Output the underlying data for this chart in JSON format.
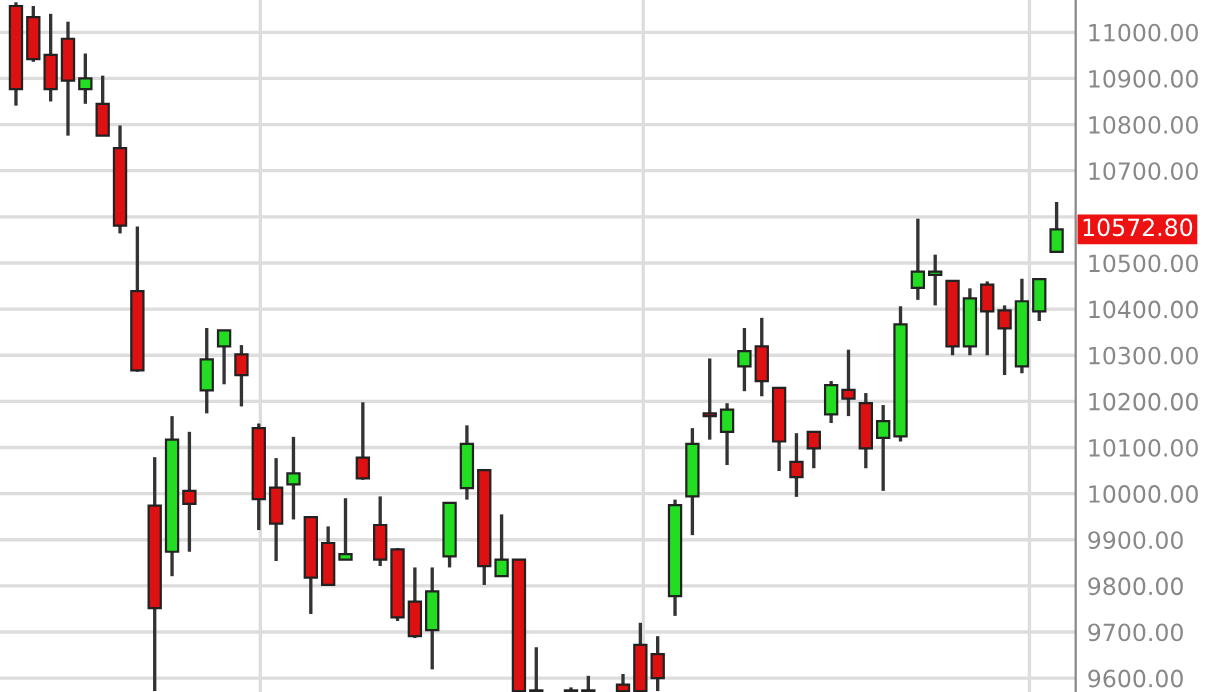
{
  "chart_data": {
    "type": "candlestick",
    "categories": [
      null,
      null,
      null,
      null,
      null,
      null,
      null,
      null,
      null,
      null,
      null,
      null,
      null,
      null,
      null,
      null,
      null,
      null,
      null,
      null,
      null,
      null,
      null,
      null,
      null,
      null,
      null,
      null,
      null,
      null,
      null,
      null,
      null,
      null,
      null,
      null,
      null,
      null,
      null,
      null,
      null,
      null,
      null,
      null,
      null,
      null,
      null,
      null,
      null,
      null,
      null,
      null,
      null,
      null,
      null,
      null,
      null,
      null,
      null,
      null,
      null
    ],
    "ohlc": [
      [
        11057,
        11065,
        10841,
        10877
      ],
      [
        11033,
        11057,
        10936,
        10942
      ],
      [
        10951,
        11040,
        10850,
        10877
      ],
      [
        10986,
        11023,
        10776,
        10895
      ],
      [
        10877,
        10954,
        10845,
        10900
      ],
      [
        10845,
        10906,
        10776,
        10776
      ],
      [
        10749,
        10798,
        10564,
        10581
      ],
      [
        10439,
        10579,
        10264,
        10267
      ],
      [
        9974,
        10079,
        9572,
        9752
      ],
      [
        9874,
        10168,
        9821,
        10117
      ],
      [
        10006,
        10134,
        9874,
        9978
      ],
      [
        10224,
        10359,
        10174,
        10291
      ],
      [
        10319,
        10354,
        10237,
        10354
      ],
      [
        10302,
        10322,
        10189,
        10257
      ],
      [
        10142,
        10152,
        9921,
        9988
      ],
      [
        10013,
        10077,
        9854,
        9935
      ],
      [
        10020,
        10123,
        9944,
        10044
      ],
      [
        9949,
        9949,
        9739,
        9818
      ],
      [
        9893,
        9929,
        9802,
        9802
      ],
      [
        9857,
        9990,
        9857,
        9869
      ],
      [
        10078,
        10198,
        10030,
        10033
      ],
      [
        9932,
        9994,
        9843,
        9857
      ],
      [
        9879,
        9882,
        9724,
        9732
      ],
      [
        9766,
        9840,
        9687,
        9691
      ],
      [
        9704,
        9840,
        9619,
        9788
      ],
      [
        9864,
        9980,
        9840,
        9980
      ],
      [
        10012,
        10148,
        9987,
        10108
      ],
      [
        10051,
        10051,
        9802,
        9843
      ],
      [
        9821,
        9955,
        9821,
        9857
      ],
      [
        9857,
        9857,
        9572,
        9572
      ],
      [
        9572,
        9667,
        9572,
        9572
      ],
      null,
      [
        9572,
        9580,
        9572,
        9572
      ],
      [
        9572,
        9605,
        9572,
        9572
      ],
      null,
      [
        9586,
        9609,
        9572,
        9572
      ],
      [
        9672,
        9720,
        9572,
        9572
      ],
      [
        9652,
        9691,
        9572,
        9600
      ],
      [
        9778,
        9987,
        9735,
        9975
      ],
      [
        9994,
        10142,
        9910,
        10108
      ],
      [
        10174,
        10293,
        10117,
        10168
      ],
      [
        10134,
        10196,
        10062,
        10182
      ],
      [
        10276,
        10359,
        10222,
        10309
      ],
      [
        10319,
        10381,
        10211,
        10244
      ],
      [
        10229,
        10229,
        10049,
        10113
      ],
      [
        10069,
        10131,
        9993,
        10036
      ],
      [
        10134,
        10134,
        10055,
        10098
      ],
      [
        10172,
        10244,
        10153,
        10235
      ],
      [
        10225,
        10312,
        10168,
        10206
      ],
      [
        10196,
        10218,
        10055,
        10098
      ],
      [
        10121,
        10192,
        10006,
        10157
      ],
      [
        10124,
        10406,
        10113,
        10367
      ],
      [
        10446,
        10596,
        10420,
        10481
      ],
      [
        10474,
        10518,
        10408,
        10481
      ],
      [
        10461,
        10461,
        10300,
        10319
      ],
      [
        10319,
        10445,
        10300,
        10423
      ],
      [
        10453,
        10460,
        10300,
        10395
      ],
      [
        10397,
        10408,
        10257,
        10358
      ],
      [
        10276,
        10466,
        10261,
        10417
      ],
      [
        10395,
        10465,
        10374,
        10465
      ],
      [
        10524,
        10632,
        10524,
        10572.8
      ]
    ],
    "ylim": [
      9570,
      11070
    ],
    "yticks": [
      {
        "value": 9600,
        "label": "9600.00"
      },
      {
        "value": 9700,
        "label": "9700.00"
      },
      {
        "value": 9800,
        "label": "9800.00"
      },
      {
        "value": 9900,
        "label": "9900.00"
      },
      {
        "value": 10000,
        "label": "10000.00"
      },
      {
        "value": 10100,
        "label": "10100.00"
      },
      {
        "value": 10200,
        "label": "10200.00"
      },
      {
        "value": 10300,
        "label": "10300.00"
      },
      {
        "value": 10400,
        "label": "10400.00"
      },
      {
        "value": 10500,
        "label": "10500.00"
      },
      {
        "value": 10600,
        "label": null
      },
      {
        "value": 10700,
        "label": "10700.00"
      },
      {
        "value": 10800,
        "label": "10800.00"
      },
      {
        "value": 10900,
        "label": "10900.00"
      },
      {
        "value": 11000,
        "label": "11000.00"
      }
    ],
    "grid": "y",
    "tick_labels": "y",
    "annotations": [
      "10572.80"
    ]
  }
}
